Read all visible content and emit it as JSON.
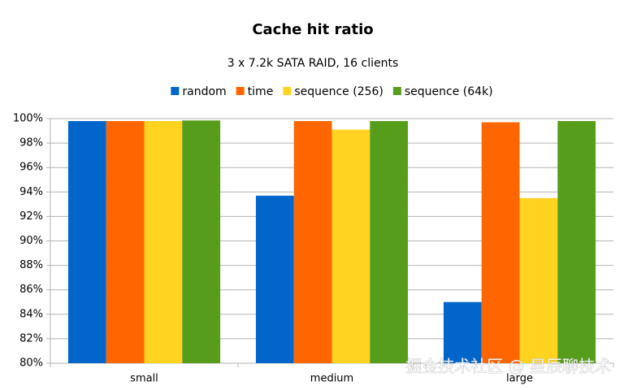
{
  "chart_data": {
    "type": "bar",
    "title": "Cache hit ratio",
    "subtitle": "3 x 7.2k SATA RAID, 16 clients",
    "categories": [
      "small",
      "medium",
      "large"
    ],
    "series": [
      {
        "name": "random",
        "color": "#0066cc",
        "values": [
          99.8,
          93.7,
          85.0
        ]
      },
      {
        "name": "time",
        "color": "#ff6600",
        "values": [
          99.8,
          99.8,
          99.7
        ]
      },
      {
        "name": "sequence (256)",
        "color": "#ffd320",
        "values": [
          99.8,
          99.1,
          93.5
        ]
      },
      {
        "name": "sequence (64k)",
        "color": "#579d1c",
        "values": [
          99.85,
          99.8,
          99.8
        ]
      }
    ],
    "ylim": [
      80,
      100
    ],
    "yticks": [
      {
        "value": 80,
        "label": "80%"
      },
      {
        "value": 82,
        "label": "82%"
      },
      {
        "value": 84,
        "label": "84%"
      },
      {
        "value": 86,
        "label": "86%"
      },
      {
        "value": 88,
        "label": "88%"
      },
      {
        "value": 90,
        "label": "90%"
      },
      {
        "value": 92,
        "label": "92%"
      },
      {
        "value": 94,
        "label": "94%"
      },
      {
        "value": 96,
        "label": "96%"
      },
      {
        "value": 98,
        "label": "98%"
      },
      {
        "value": 100,
        "label": "100%"
      }
    ],
    "grid": true,
    "legend": "top",
    "watermark": "掘金技术社区 @ 星辰聊技术"
  }
}
